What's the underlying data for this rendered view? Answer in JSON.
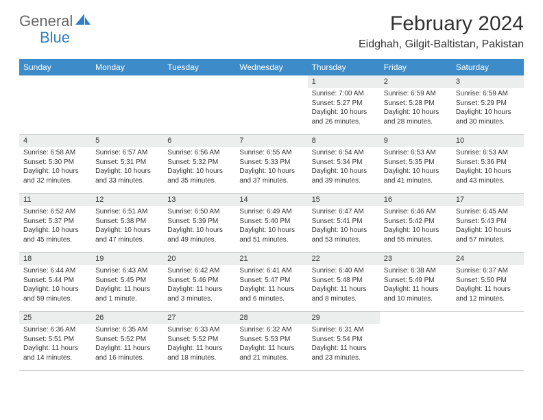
{
  "brand": {
    "part1": "General",
    "part2": "Blue",
    "accent_color": "#2f7fc2"
  },
  "title": "February 2024",
  "location": "Eidghah, Gilgit-Baltistan, Pakistan",
  "header_bg": "#3d8cc9",
  "daynum_bg": "#eceeee",
  "border_color": "#bbbbbb",
  "text_color": "#333333",
  "weekdays": [
    "Sunday",
    "Monday",
    "Tuesday",
    "Wednesday",
    "Thursday",
    "Friday",
    "Saturday"
  ],
  "leading_blanks": 4,
  "days": [
    {
      "n": 1,
      "sunrise": "7:00 AM",
      "sunset": "5:27 PM",
      "daylight": "10 hours and 26 minutes."
    },
    {
      "n": 2,
      "sunrise": "6:59 AM",
      "sunset": "5:28 PM",
      "daylight": "10 hours and 28 minutes."
    },
    {
      "n": 3,
      "sunrise": "6:59 AM",
      "sunset": "5:29 PM",
      "daylight": "10 hours and 30 minutes."
    },
    {
      "n": 4,
      "sunrise": "6:58 AM",
      "sunset": "5:30 PM",
      "daylight": "10 hours and 32 minutes."
    },
    {
      "n": 5,
      "sunrise": "6:57 AM",
      "sunset": "5:31 PM",
      "daylight": "10 hours and 33 minutes."
    },
    {
      "n": 6,
      "sunrise": "6:56 AM",
      "sunset": "5:32 PM",
      "daylight": "10 hours and 35 minutes."
    },
    {
      "n": 7,
      "sunrise": "6:55 AM",
      "sunset": "5:33 PM",
      "daylight": "10 hours and 37 minutes."
    },
    {
      "n": 8,
      "sunrise": "6:54 AM",
      "sunset": "5:34 PM",
      "daylight": "10 hours and 39 minutes."
    },
    {
      "n": 9,
      "sunrise": "6:53 AM",
      "sunset": "5:35 PM",
      "daylight": "10 hours and 41 minutes."
    },
    {
      "n": 10,
      "sunrise": "6:53 AM",
      "sunset": "5:36 PM",
      "daylight": "10 hours and 43 minutes."
    },
    {
      "n": 11,
      "sunrise": "6:52 AM",
      "sunset": "5:37 PM",
      "daylight": "10 hours and 45 minutes."
    },
    {
      "n": 12,
      "sunrise": "6:51 AM",
      "sunset": "5:38 PM",
      "daylight": "10 hours and 47 minutes."
    },
    {
      "n": 13,
      "sunrise": "6:50 AM",
      "sunset": "5:39 PM",
      "daylight": "10 hours and 49 minutes."
    },
    {
      "n": 14,
      "sunrise": "6:49 AM",
      "sunset": "5:40 PM",
      "daylight": "10 hours and 51 minutes."
    },
    {
      "n": 15,
      "sunrise": "6:47 AM",
      "sunset": "5:41 PM",
      "daylight": "10 hours and 53 minutes."
    },
    {
      "n": 16,
      "sunrise": "6:46 AM",
      "sunset": "5:42 PM",
      "daylight": "10 hours and 55 minutes."
    },
    {
      "n": 17,
      "sunrise": "6:45 AM",
      "sunset": "5:43 PM",
      "daylight": "10 hours and 57 minutes."
    },
    {
      "n": 18,
      "sunrise": "6:44 AM",
      "sunset": "5:44 PM",
      "daylight": "10 hours and 59 minutes."
    },
    {
      "n": 19,
      "sunrise": "6:43 AM",
      "sunset": "5:45 PM",
      "daylight": "11 hours and 1 minute."
    },
    {
      "n": 20,
      "sunrise": "6:42 AM",
      "sunset": "5:46 PM",
      "daylight": "11 hours and 3 minutes."
    },
    {
      "n": 21,
      "sunrise": "6:41 AM",
      "sunset": "5:47 PM",
      "daylight": "11 hours and 6 minutes."
    },
    {
      "n": 22,
      "sunrise": "6:40 AM",
      "sunset": "5:48 PM",
      "daylight": "11 hours and 8 minutes."
    },
    {
      "n": 23,
      "sunrise": "6:38 AM",
      "sunset": "5:49 PM",
      "daylight": "11 hours and 10 minutes."
    },
    {
      "n": 24,
      "sunrise": "6:37 AM",
      "sunset": "5:50 PM",
      "daylight": "11 hours and 12 minutes."
    },
    {
      "n": 25,
      "sunrise": "6:36 AM",
      "sunset": "5:51 PM",
      "daylight": "11 hours and 14 minutes."
    },
    {
      "n": 26,
      "sunrise": "6:35 AM",
      "sunset": "5:52 PM",
      "daylight": "11 hours and 16 minutes."
    },
    {
      "n": 27,
      "sunrise": "6:33 AM",
      "sunset": "5:52 PM",
      "daylight": "11 hours and 18 minutes."
    },
    {
      "n": 28,
      "sunrise": "6:32 AM",
      "sunset": "5:53 PM",
      "daylight": "11 hours and 21 minutes."
    },
    {
      "n": 29,
      "sunrise": "6:31 AM",
      "sunset": "5:54 PM",
      "daylight": "11 hours and 23 minutes."
    }
  ],
  "labels": {
    "sunrise": "Sunrise:",
    "sunset": "Sunset:",
    "daylight": "Daylight:"
  }
}
